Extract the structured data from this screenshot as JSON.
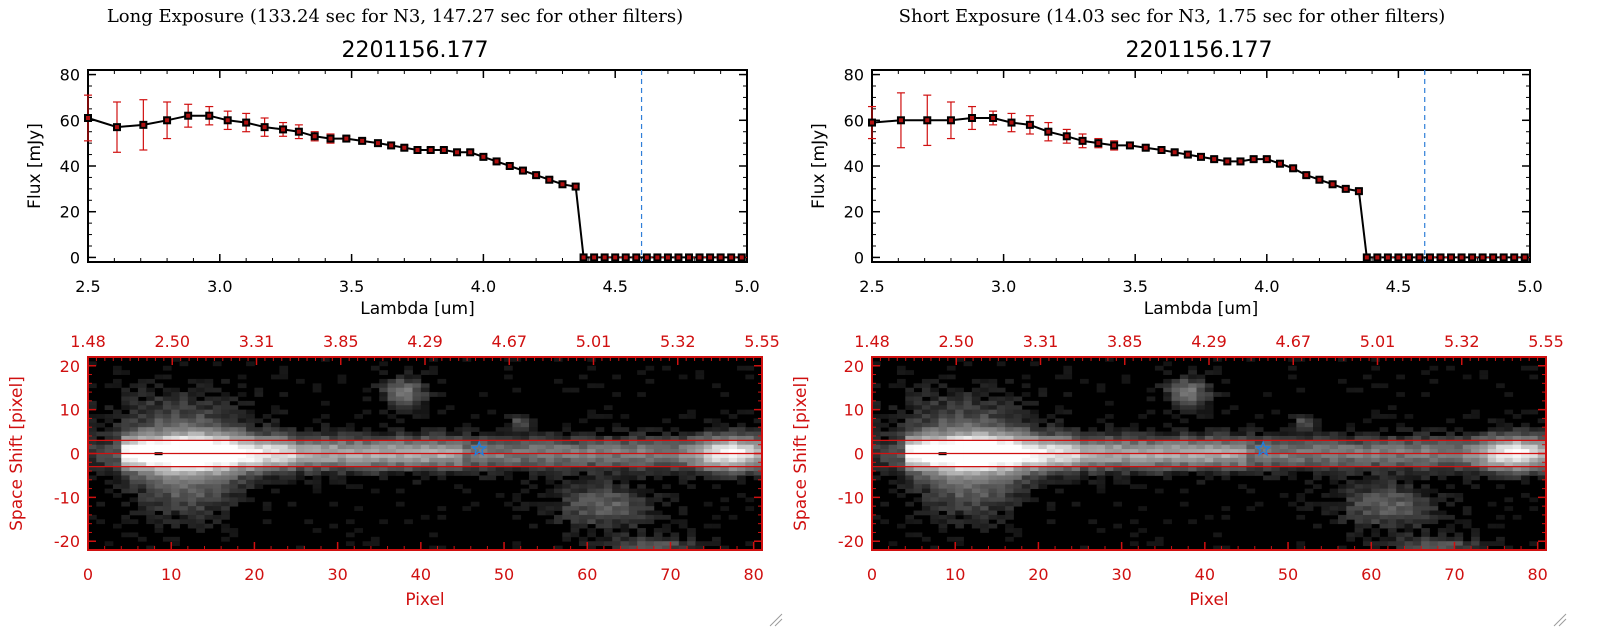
{
  "colors": {
    "red": "#d01010",
    "blue_marker": "#1f7fe0",
    "vline": "#2f7ed8",
    "black": "#000000"
  },
  "panels": [
    {
      "header": "Long Exposure (133.24 sec for N3, 147.27 sec for other filters)",
      "spectrum": {
        "chart_data": {
          "type": "line",
          "title": "2201156.177",
          "xlabel": "Lambda [um]",
          "ylabel": "Flux [mJy]",
          "xlim": [
            2.5,
            5.0
          ],
          "ylim": [
            -2,
            82
          ],
          "x_ticks": [
            "2.5",
            "3.0",
            "3.5",
            "4.0",
            "4.5",
            "5.0"
          ],
          "y_ticks": [
            "0",
            "20",
            "40",
            "60",
            "80"
          ],
          "vline_x": 4.6,
          "x": [
            2.5,
            2.61,
            2.71,
            2.8,
            2.88,
            2.96,
            3.03,
            3.1,
            3.17,
            3.24,
            3.3,
            3.36,
            3.42,
            3.48,
            3.54,
            3.6,
            3.65,
            3.7,
            3.75,
            3.8,
            3.85,
            3.9,
            3.95,
            4.0,
            4.05,
            4.1,
            4.15,
            4.2,
            4.25,
            4.3,
            4.35,
            4.38,
            4.42,
            4.46,
            4.5,
            4.54,
            4.58,
            4.62,
            4.66,
            4.7,
            4.74,
            4.78,
            4.82,
            4.86,
            4.9,
            4.94,
            4.98
          ],
          "y": [
            61,
            57,
            58,
            60,
            62,
            62,
            60,
            59,
            57,
            56,
            55,
            53,
            52,
            52,
            51,
            50,
            49,
            48,
            47,
            47,
            47,
            46,
            46,
            44,
            42,
            40,
            38,
            36,
            34,
            32,
            31,
            0,
            0,
            0,
            0,
            0,
            0,
            0,
            0,
            0,
            0,
            0,
            0,
            0,
            0,
            0,
            0
          ],
          "yerr": [
            10,
            11,
            11,
            8,
            5,
            4,
            4,
            4,
            4,
            3,
            3,
            2,
            2,
            1,
            1,
            1,
            1,
            1,
            1,
            1,
            1,
            1,
            1,
            1,
            1,
            1,
            1,
            1,
            1,
            1,
            1,
            0,
            0,
            0,
            0,
            0,
            0,
            0,
            0,
            0,
            0,
            0,
            0,
            0,
            0,
            0,
            0
          ]
        }
      },
      "image": {
        "chart_data": {
          "type": "heatmap",
          "xlabel": "Pixel",
          "ylabel": "Space Shift [pixel]",
          "xlim": [
            0,
            81
          ],
          "ylim": [
            -22,
            22
          ],
          "x_ticks": [
            "0",
            "10",
            "20",
            "30",
            "40",
            "50",
            "60",
            "70",
            "80"
          ],
          "y_ticks": [
            "-20",
            "-10",
            "0",
            "10",
            "20"
          ],
          "top_ticks": [
            "1.48",
            "2.50",
            "3.31",
            "3.85",
            "4.29",
            "4.67",
            "5.01",
            "5.32",
            "5.55"
          ],
          "aperture_lines": [
            3,
            0,
            -3
          ],
          "marker_x": 47,
          "marker_y": 1
        }
      }
    },
    {
      "header": "Short Exposure (14.03 sec for N3, 1.75 sec for other filters)",
      "spectrum": {
        "chart_data": {
          "type": "line",
          "title": "2201156.177",
          "xlabel": "Lambda [um]",
          "ylabel": "Flux [mJy]",
          "xlim": [
            2.5,
            5.0
          ],
          "ylim": [
            -2,
            82
          ],
          "x_ticks": [
            "2.5",
            "3.0",
            "3.5",
            "4.0",
            "4.5",
            "5.0"
          ],
          "y_ticks": [
            "0",
            "20",
            "40",
            "60",
            "80"
          ],
          "vline_x": 4.6,
          "x": [
            2.5,
            2.61,
            2.71,
            2.8,
            2.88,
            2.96,
            3.03,
            3.1,
            3.17,
            3.24,
            3.3,
            3.36,
            3.42,
            3.48,
            3.54,
            3.6,
            3.65,
            3.7,
            3.75,
            3.8,
            3.85,
            3.9,
            3.95,
            4.0,
            4.05,
            4.1,
            4.15,
            4.2,
            4.25,
            4.3,
            4.35,
            4.38,
            4.42,
            4.46,
            4.5,
            4.54,
            4.58,
            4.62,
            4.66,
            4.7,
            4.74,
            4.78,
            4.82,
            4.86,
            4.9,
            4.94,
            4.98
          ],
          "y": [
            59,
            60,
            60,
            60,
            61,
            61,
            59,
            58,
            55,
            53,
            51,
            50,
            49,
            49,
            48,
            47,
            46,
            45,
            44,
            43,
            42,
            42,
            43,
            43,
            41,
            39,
            36,
            34,
            32,
            30,
            29,
            0,
            0,
            0,
            0,
            0,
            0,
            0,
            0,
            0,
            0,
            0,
            0,
            0,
            0,
            0,
            0
          ],
          "yerr": [
            7,
            12,
            11,
            8,
            5,
            3,
            4,
            4,
            4,
            3,
            3,
            2,
            2,
            1,
            1,
            1,
            1,
            1,
            1,
            1,
            1,
            1,
            1,
            1,
            1,
            1,
            1,
            1,
            1,
            1,
            1,
            0,
            0,
            0,
            0,
            0,
            0,
            0,
            0,
            0,
            0,
            0,
            0,
            0,
            0,
            0,
            0
          ]
        }
      },
      "image": {
        "chart_data": {
          "type": "heatmap",
          "xlabel": "Pixel",
          "ylabel": "Space Shift [pixel]",
          "xlim": [
            0,
            81
          ],
          "ylim": [
            -22,
            22
          ],
          "x_ticks": [
            "0",
            "10",
            "20",
            "30",
            "40",
            "50",
            "60",
            "70",
            "80"
          ],
          "y_ticks": [
            "-20",
            "-10",
            "0",
            "10",
            "20"
          ],
          "top_ticks": [
            "1.48",
            "2.50",
            "3.31",
            "3.85",
            "4.29",
            "4.67",
            "5.01",
            "5.32",
            "5.55"
          ],
          "aperture_lines": [
            3,
            0,
            -3
          ],
          "marker_x": 47,
          "marker_y": 1
        }
      }
    }
  ]
}
